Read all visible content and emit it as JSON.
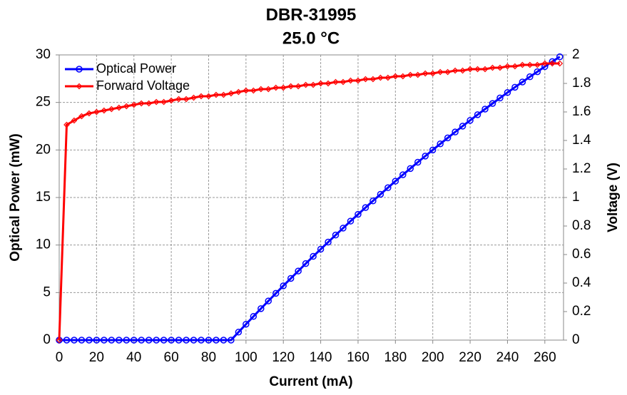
{
  "chart_data": {
    "type": "line",
    "title": "DBR-31995",
    "subtitle": "25.0 °C",
    "x_label": "Current (mA)",
    "y_label": "Optical Power (mW)",
    "y2_label": "Voltage (V)",
    "x": [
      0,
      4,
      8,
      12,
      16,
      20,
      24,
      28,
      32,
      36,
      40,
      44,
      48,
      52,
      56,
      60,
      64,
      68,
      72,
      76,
      80,
      84,
      88,
      92,
      96,
      100,
      104,
      108,
      112,
      116,
      120,
      124,
      128,
      132,
      136,
      140,
      144,
      148,
      152,
      156,
      160,
      164,
      168,
      172,
      176,
      180,
      184,
      188,
      192,
      196,
      200,
      204,
      208,
      212,
      216,
      220,
      224,
      228,
      232,
      236,
      240,
      244,
      248,
      252,
      256,
      260,
      264,
      268
    ],
    "series": [
      {
        "name": "Optical Power",
        "color": "#0000ff",
        "marker": "circle",
        "values": [
          0,
          0,
          0,
          0,
          0,
          0,
          0,
          0,
          0,
          0,
          0,
          0,
          0,
          0,
          0,
          0,
          0,
          0,
          0,
          0,
          0,
          0,
          0,
          0,
          0.84,
          1.67,
          2.49,
          3.31,
          4.12,
          4.92,
          5.71,
          6.49,
          7.27,
          8.05,
          8.81,
          9.56,
          10.31,
          11.05,
          11.78,
          12.52,
          13.23,
          13.94,
          14.64,
          15.34,
          16.03,
          16.72,
          17.39,
          18.05,
          18.71,
          19.36,
          20.0,
          20.64,
          21.27,
          21.89,
          22.51,
          23.11,
          23.71,
          24.3,
          24.89,
          25.47,
          26.04,
          26.6,
          27.15,
          27.7,
          28.23,
          28.77,
          29.3,
          29.8
        ]
      },
      {
        "name": "Forward Voltage",
        "color": "#ff0000",
        "marker": "diamond",
        "axis": "y2",
        "values": [
          0,
          1.51,
          1.54,
          1.57,
          1.59,
          1.6,
          1.61,
          1.62,
          1.63,
          1.64,
          1.65,
          1.66,
          1.66,
          1.67,
          1.67,
          1.68,
          1.69,
          1.69,
          1.7,
          1.71,
          1.71,
          1.72,
          1.72,
          1.73,
          1.74,
          1.75,
          1.75,
          1.76,
          1.76,
          1.77,
          1.77,
          1.78,
          1.78,
          1.79,
          1.79,
          1.8,
          1.8,
          1.81,
          1.81,
          1.82,
          1.82,
          1.83,
          1.83,
          1.84,
          1.84,
          1.85,
          1.85,
          1.86,
          1.86,
          1.87,
          1.87,
          1.88,
          1.88,
          1.89,
          1.89,
          1.9,
          1.9,
          1.9,
          1.91,
          1.91,
          1.92,
          1.92,
          1.93,
          1.93,
          1.93,
          1.94,
          1.94,
          1.94
        ]
      }
    ],
    "xlim": [
      0,
      270
    ],
    "xticks": [
      0,
      20,
      40,
      60,
      80,
      100,
      120,
      140,
      160,
      180,
      200,
      220,
      240,
      260
    ],
    "ylim": [
      0,
      30
    ],
    "yticks": [
      0,
      5,
      10,
      15,
      20,
      25,
      30
    ],
    "y2lim": [
      0,
      2
    ],
    "y2ticks": [
      0,
      0.2,
      0.4,
      0.6,
      0.8,
      1,
      1.2,
      1.4,
      1.6,
      1.8,
      2
    ],
    "grid": true,
    "legend": "top-left"
  }
}
